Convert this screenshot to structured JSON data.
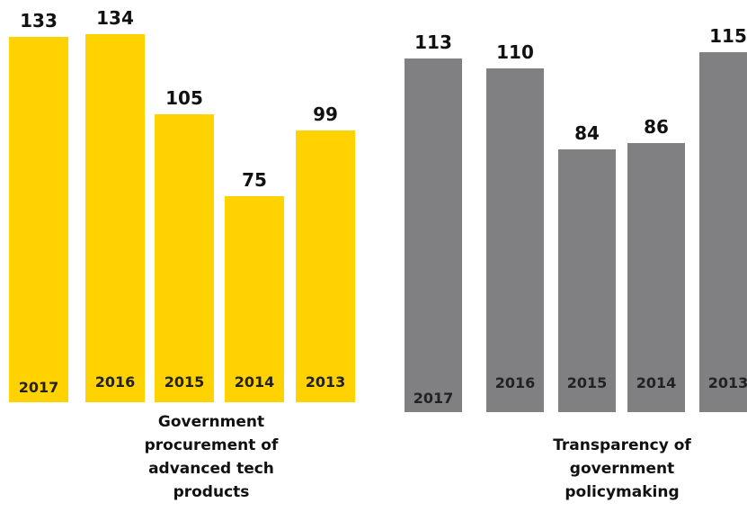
{
  "chart_data": [
    {
      "type": "bar",
      "title": "Government procurement of advanced tech products",
      "categories": [
        "2017",
        "2016",
        "2015",
        "2014",
        "2013"
      ],
      "values": [
        133,
        134,
        105,
        75,
        99
      ],
      "color": "#ffd200",
      "ylim": [
        0,
        140
      ]
    },
    {
      "type": "bar",
      "title": "Transparency of government policymaking",
      "categories": [
        "2017",
        "2016",
        "2015",
        "2014",
        "2013"
      ],
      "values": [
        113,
        110,
        84,
        86,
        115
      ],
      "color": "#808083",
      "ylim": [
        0,
        120
      ]
    }
  ]
}
